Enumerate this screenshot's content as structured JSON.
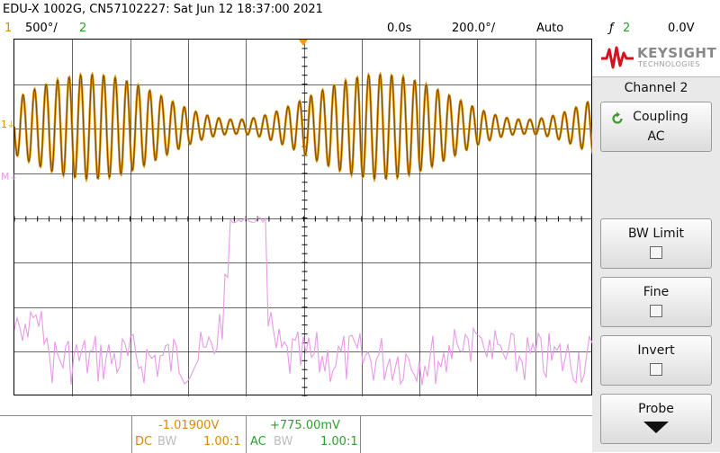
{
  "header": {
    "title": "EDU-X 1002G, CN57102227: Sat Jun 12 18:37:00 2021"
  },
  "status_bar": {
    "ch1_number": "1",
    "ch1_scale": "500°/",
    "ch2_number": "2",
    "time_delay": "0.0s",
    "time_scale": "200.0°/",
    "trigger_mode": "Auto",
    "trigger_symbol": "ƒ",
    "trigger_source": "2",
    "trigger_level": "0.0V"
  },
  "screen": {
    "ch1_marker": "1",
    "math_marker": "M"
  },
  "side_panel": {
    "logo_brand": "KEYSIGHT",
    "logo_sub": "TECHNOLOGIES",
    "menu_title": "Channel 2",
    "coupling_label": "Coupling",
    "coupling_value": "AC",
    "bwlimit_label": "BW Limit",
    "fine_label": "Fine",
    "invert_label": "Invert",
    "probe_label": "Probe"
  },
  "bottom_bar": {
    "ch1_offset": "-1.01900V",
    "ch2_offset": "+775.00mV",
    "ch1_coupling": "DC",
    "ch1_bw": "BW",
    "ch1_probe": "1.00:1",
    "ch2_coupling": "AC",
    "ch2_bw": "BW",
    "ch2_probe": "1.00:1"
  },
  "colors": {
    "ch1": "#d98b00",
    "ch2": "#2ca02c",
    "math": "#e89ae8",
    "logo_red": "#d3121d"
  }
}
